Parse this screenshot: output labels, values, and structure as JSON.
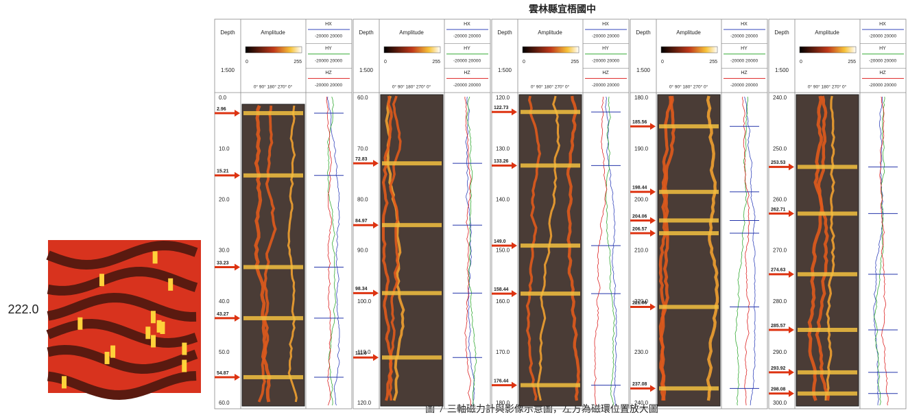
{
  "title": "雲林縣宜梧國中",
  "zoom": {
    "depth": "222.0"
  },
  "header": {
    "depth": "Depth",
    "amplitude": "Amplitude",
    "amp_min": "0",
    "amp_max": "255",
    "angles": "0°  90°  180°  270°  0°",
    "scale": "1:500",
    "hx": "HX",
    "hy": "HY",
    "hz": "HZ",
    "range": "-20000  20000"
  },
  "panels": [
    {
      "ticks": [
        "0.0",
        "10.0",
        "20.0",
        "30.0",
        "40.0",
        "50.0",
        "60.0"
      ],
      "arrows": [
        "2.96",
        "15.21",
        "33.23",
        "43.27",
        "54.87"
      ]
    },
    {
      "ticks": [
        "60.0",
        "70.0",
        "80.0",
        "90.0",
        "100.0",
        "110.0",
        "120.0"
      ],
      "arrows": [
        "72.83",
        "84.97",
        "98.34",
        "111.0"
      ]
    },
    {
      "ticks": [
        "120.0",
        "130.0",
        "140.0",
        "150.0",
        "160.0",
        "170.0",
        "180.0"
      ],
      "arrows": [
        "122.73",
        "133.26",
        "149.0",
        "158.44",
        "176.44"
      ]
    },
    {
      "ticks": [
        "180.0",
        "190.0",
        "200.0",
        "210.0",
        "220.0",
        "230.0",
        "240.0"
      ],
      "arrows": [
        "185.56",
        "198.44",
        "204.06",
        "206.57",
        "221.06",
        "237.08"
      ]
    },
    {
      "ticks": [
        "240.0",
        "250.0",
        "260.0",
        "270.0",
        "280.0",
        "290.0",
        "300.0"
      ],
      "arrows": [
        "253.53",
        "262.71",
        "274.63",
        "285.57",
        "293.92",
        "298.08"
      ]
    }
  ],
  "caption": "圖 7  三軸磁力計與影像示意圖，左方為磁環位置放大圖"
}
